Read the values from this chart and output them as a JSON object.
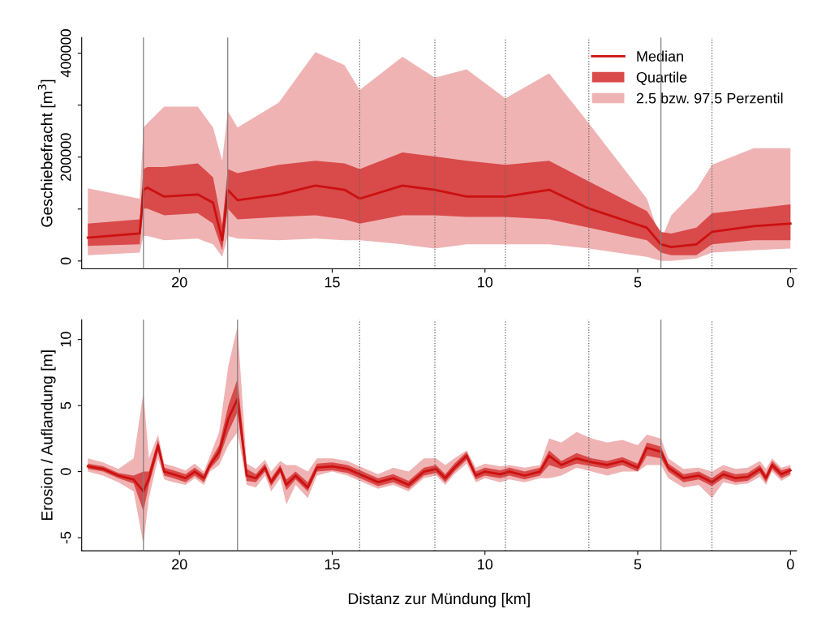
{
  "chart_data": [
    {
      "type": "line",
      "ylabel": "Geschiebefracht [m$^{3}$]",
      "xlim": [
        23.2,
        -0.2
      ],
      "xticks": [
        20,
        15,
        10,
        5,
        0
      ],
      "ylim": [
        -15000,
        430000
      ],
      "yticks": [
        0,
        {
          "value": 100000,
          "label": null
        },
        200000,
        {
          "value": 300000,
          "label": null
        },
        400000
      ],
      "legend": "top right",
      "x": [
        23.0,
        21.3,
        21.18,
        21.05,
        20.5,
        19.4,
        18.9,
        18.6,
        18.42,
        18.1,
        16.75,
        15.55,
        14.6,
        14.1,
        12.7,
        11.64,
        10.6,
        9.33,
        7.9,
        6.6,
        4.7,
        4.24,
        3.9,
        3.08,
        2.57,
        1.2,
        0.0
      ],
      "series": [
        {
          "name": "2.5 bzw. 97.5 Perzentil",
          "color": "#f0b3b3",
          "values": [
            null,
            null,
            null,
            null,
            null,
            null,
            null,
            null,
            null,
            null,
            null,
            null,
            null,
            null,
            null,
            null,
            null,
            null,
            null,
            null,
            null,
            null,
            null,
            null,
            null,
            null,
            null
          ],
          "lower": [
            11000,
            16000,
            48000,
            48000,
            40000,
            43000,
            32000,
            8000,
            48000,
            43000,
            40000,
            43000,
            40000,
            40000,
            32000,
            24000,
            32000,
            32000,
            32000,
            24000,
            8000,
            0,
            0,
            5000,
            16000,
            21000,
            24000
          ],
          "upper": [
            140000,
            120000,
            257000,
            265000,
            297000,
            297000,
            257000,
            193000,
            289000,
            257000,
            305000,
            402000,
            377000,
            329000,
            393000,
            353000,
            369000,
            313000,
            361000,
            265000,
            120000,
            40000,
            88000,
            137000,
            185000,
            217000,
            217000
          ]
        },
        {
          "name": "Quartile",
          "color": "#d94a4a",
          "values": [
            null,
            null,
            null,
            null,
            null,
            null,
            null,
            null,
            null,
            null,
            null,
            null,
            null,
            null,
            null,
            null,
            null,
            null,
            null,
            null,
            null,
            null,
            null,
            null,
            null,
            null,
            null
          ],
          "lower": [
            29000,
            32000,
            101000,
            101000,
            88000,
            92000,
            72000,
            21000,
            101000,
            80000,
            85000,
            88000,
            80000,
            72000,
            88000,
            88000,
            85000,
            85000,
            80000,
            64000,
            40000,
            16000,
            11000,
            11000,
            32000,
            40000,
            40000
          ],
          "upper": [
            72000,
            80000,
            177000,
            181000,
            181000,
            188000,
            161000,
            69000,
            177000,
            169000,
            185000,
            193000,
            188000,
            177000,
            209000,
            201000,
            193000,
            185000,
            193000,
            153000,
            96000,
            56000,
            53000,
            64000,
            92000,
            101000,
            109000
          ]
        },
        {
          "name": "Median",
          "color": "#cc1010",
          "values": [
            45000,
            53000,
            137000,
            141000,
            124000,
            128000,
            112000,
            40000,
            137000,
            117000,
            128000,
            145000,
            137000,
            120000,
            145000,
            137000,
            124000,
            124000,
            137000,
            101000,
            64000,
            32000,
            27000,
            32000,
            56000,
            67000,
            72000
          ]
        }
      ],
      "ref_lines": [
        {
          "axis": "x",
          "value": 21.18,
          "line_style": "solid",
          "color": "#808080"
        },
        {
          "axis": "x",
          "value": 18.42,
          "line_style": "solid",
          "color": "#808080"
        },
        {
          "axis": "x",
          "value": 4.24,
          "line_style": "solid",
          "color": "#808080"
        },
        {
          "axis": "x",
          "value": 14.1,
          "line_style": "dotted",
          "color": "#606060"
        },
        {
          "axis": "x",
          "value": 11.64,
          "line_style": "dotted",
          "color": "#606060"
        },
        {
          "axis": "x",
          "value": 9.33,
          "line_style": "dotted",
          "color": "#606060"
        },
        {
          "axis": "x",
          "value": 6.6,
          "line_style": "dotted",
          "color": "#606060"
        },
        {
          "axis": "x",
          "value": 2.57,
          "line_style": "dotted",
          "color": "#606060"
        }
      ]
    },
    {
      "type": "line",
      "ylabel": "Erosion / Auflandung [m]",
      "xlabel": "Distanz zur Mündung [km]",
      "xlim": [
        23.2,
        -0.2
      ],
      "xticks": [
        20,
        15,
        10,
        5,
        0
      ],
      "ylim": [
        -6,
        11.5
      ],
      "yticks": [
        -5,
        0,
        5,
        10
      ],
      "x": [
        23.0,
        22.5,
        22.0,
        21.5,
        21.18,
        21.0,
        20.7,
        20.5,
        20.2,
        19.8,
        19.5,
        19.2,
        19.0,
        18.7,
        18.4,
        18.1,
        17.8,
        17.5,
        17.2,
        17.0,
        16.7,
        16.5,
        16.2,
        15.8,
        15.5,
        15.0,
        14.5,
        14.0,
        13.5,
        13.0,
        12.5,
        12.0,
        11.6,
        11.3,
        11.0,
        10.6,
        10.3,
        10.0,
        9.5,
        9.2,
        8.7,
        8.2,
        7.9,
        7.5,
        7.0,
        6.5,
        6.0,
        5.5,
        5.0,
        4.7,
        4.24,
        4.0,
        3.5,
        3.0,
        2.57,
        2.2,
        1.8,
        1.4,
        1.0,
        0.8,
        0.6,
        0.3,
        0.0
      ],
      "series": [
        {
          "color": "#f0b3b3",
          "values": [
            null,
            null,
            null,
            null,
            null,
            null,
            null,
            null,
            null,
            null,
            null,
            null,
            null,
            null,
            null,
            null,
            null,
            null,
            null,
            null,
            null,
            null,
            null,
            null,
            null,
            null,
            null,
            null,
            null,
            null,
            null,
            null,
            null,
            null,
            null,
            null,
            null,
            null,
            null,
            null,
            null,
            null,
            null,
            null,
            null,
            null,
            null,
            null,
            null,
            null,
            null,
            null,
            null,
            null,
            null,
            null,
            null,
            null,
            null,
            null,
            null,
            null,
            null
          ],
          "lower": [
            0,
            -0.3,
            -0.8,
            -1.5,
            -5.5,
            -2,
            1,
            -0.6,
            -0.8,
            -1,
            -0.5,
            -1,
            0,
            0.5,
            2,
            3,
            -1,
            -1.2,
            -0.3,
            -1.5,
            -0.5,
            -2.5,
            -1,
            -2,
            -0.3,
            0,
            -0.3,
            -0.8,
            -1.3,
            -1,
            -1.5,
            -0.5,
            -0.3,
            -1,
            -0.2,
            0.6,
            -0.8,
            -0.5,
            -0.8,
            -0.6,
            -0.8,
            -0.5,
            -0.5,
            -0.3,
            0.3,
            0,
            -0.3,
            0,
            0,
            0.5,
            0.5,
            -0.5,
            -1.2,
            -1,
            -2,
            -0.8,
            -1,
            -0.9,
            -0.4,
            -1,
            0,
            -0.7,
            -0.3
          ],
          "upper": [
            1,
            0.7,
            0.2,
            1,
            6,
            1,
            2.8,
            0.6,
            0.4,
            0.1,
            0.6,
            0,
            1.2,
            3,
            8,
            11,
            0.6,
            0.2,
            0.9,
            0,
            0.8,
            0.5,
            0.5,
            0,
            1,
            1,
            0.8,
            0.3,
            -0.2,
            0.3,
            0,
            1,
            1,
            0.5,
            1,
            1.6,
            0.3,
            0.6,
            0.4,
            0.5,
            0.3,
            0.5,
            2.5,
            2.2,
            3,
            2.5,
            2.2,
            2.4,
            2,
            2.8,
            2.5,
            1,
            0.2,
            0.3,
            0,
            0.5,
            0.2,
            0.3,
            0.8,
            0.2,
            1,
            0.3,
            0.5
          ]
        },
        {
          "color": "#d94a4a",
          "values": [
            null,
            null,
            null,
            null,
            null,
            null,
            null,
            null,
            null,
            null,
            null,
            null,
            null,
            null,
            null,
            null,
            null,
            null,
            null,
            null,
            null,
            null,
            null,
            null,
            null,
            null,
            null,
            null,
            null,
            null,
            null,
            null,
            null,
            null,
            null,
            null,
            null,
            null,
            null,
            null,
            null,
            null,
            null,
            null,
            null,
            null,
            null,
            null,
            null,
            null,
            null,
            null,
            null,
            null,
            null,
            null,
            null,
            null,
            null,
            null,
            null,
            null,
            null
          ],
          "lower": [
            0.2,
            0,
            -0.5,
            -0.9,
            -3,
            -1,
            1.5,
            -0.3,
            -0.5,
            -0.8,
            -0.3,
            -0.8,
            0.2,
            1,
            3,
            4.5,
            -0.7,
            -0.8,
            0,
            -1.1,
            -0.1,
            -1.4,
            -0.6,
            -1.5,
            0,
            0.1,
            -0.1,
            -0.6,
            -1.1,
            -0.8,
            -1.3,
            -0.3,
            -0.1,
            -0.8,
            0,
            0.9,
            -0.6,
            -0.3,
            -0.5,
            -0.3,
            -0.6,
            -0.3,
            0.5,
            0.2,
            0.6,
            0.4,
            0.2,
            0.5,
            0,
            1.2,
            1.0,
            0,
            -0.8,
            -0.6,
            -1.1,
            -0.5,
            -0.8,
            -0.7,
            -0.1,
            -0.8,
            0.2,
            -0.5,
            -0.2
          ],
          "upper": [
            0.6,
            0.4,
            -0.1,
            -0.3,
            0,
            0,
            2.4,
            0.3,
            0.1,
            -0.2,
            0.3,
            -0.2,
            0.8,
            2,
            5,
            7,
            0.2,
            -0.2,
            0.6,
            -0.5,
            0.5,
            -0.6,
            0,
            -0.8,
            0.6,
            0.7,
            0.5,
            0,
            -0.5,
            -0.2,
            -0.7,
            0.3,
            0.5,
            -0.2,
            0.6,
            1.5,
            0,
            0.3,
            0.1,
            0.3,
            0,
            0.3,
            1.6,
            0.8,
            1.4,
            1.0,
            0.8,
            1.1,
            0.6,
            2.2,
            1.9,
            0.6,
            -0.2,
            0,
            -0.5,
            0.1,
            -0.2,
            -0.1,
            0.5,
            -0.2,
            0.8,
            0.1,
            0.3
          ]
        },
        {
          "color": "#cc1010",
          "values": [
            0.4,
            0.2,
            -0.3,
            -0.6,
            -1.5,
            -0.5,
            2.0,
            0,
            -0.2,
            -0.5,
            0,
            -0.5,
            0.5,
            1.5,
            4,
            5.5,
            -0.3,
            -0.5,
            0.3,
            -0.8,
            0.2,
            -1.0,
            -0.3,
            -1.2,
            0.3,
            0.4,
            0.2,
            -0.3,
            -0.8,
            -0.5,
            -1.0,
            0,
            0.2,
            -0.5,
            0.3,
            1.2,
            -0.3,
            0,
            -0.2,
            0,
            -0.3,
            0,
            1.2,
            0.5,
            1.0,
            0.7,
            0.5,
            0.8,
            0.3,
            1.8,
            1.5,
            0.3,
            -0.5,
            -0.3,
            -0.8,
            -0.2,
            -0.5,
            -0.4,
            0.2,
            -0.5,
            0.5,
            -0.2,
            0.1
          ]
        }
      ],
      "ref_lines": [
        {
          "axis": "x",
          "value": 21.18,
          "line_style": "solid",
          "color": "#808080"
        },
        {
          "axis": "x",
          "value": 18.1,
          "line_style": "solid",
          "color": "#808080"
        },
        {
          "axis": "x",
          "value": 4.24,
          "line_style": "solid",
          "color": "#808080"
        },
        {
          "axis": "x",
          "value": 14.1,
          "line_style": "dotted",
          "color": "#606060"
        },
        {
          "axis": "x",
          "value": 11.64,
          "line_style": "dotted",
          "color": "#606060"
        },
        {
          "axis": "x",
          "value": 9.33,
          "line_style": "dotted",
          "color": "#606060"
        },
        {
          "axis": "x",
          "value": 6.6,
          "line_style": "dotted",
          "color": "#606060"
        },
        {
          "axis": "x",
          "value": 2.57,
          "line_style": "dotted",
          "color": "#606060"
        }
      ]
    }
  ]
}
